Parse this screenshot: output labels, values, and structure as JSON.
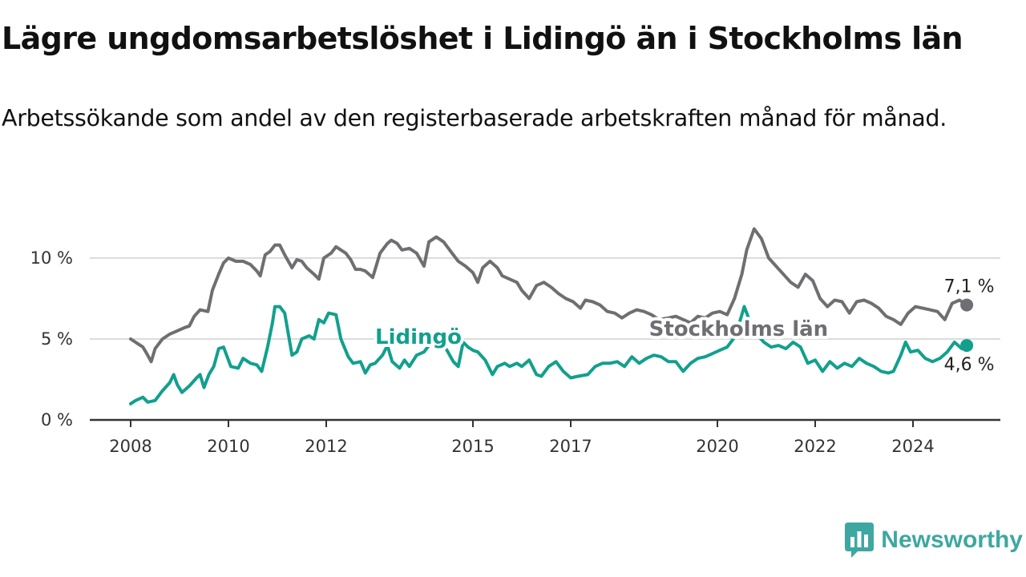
{
  "title": "Lägre ungdomsarbetslöshet i Lidingö än i Stockholms län",
  "subtitle": "Arbetssökande som andel av den registerbaserade arbetskraften månad för månad.",
  "brand": {
    "name": "Newsworthy",
    "logo_icon": "bar-chart-speech-bubble-icon",
    "color": "#3fa7a1"
  },
  "chart_data": {
    "type": "line",
    "grid": true,
    "ylim": [
      0,
      12.5
    ],
    "xlim": [
      2008.0,
      2025.2
    ],
    "x_ticks": [
      2008,
      2010,
      2012,
      2015,
      2017,
      2020,
      2022,
      2024
    ],
    "y_ticks": [
      0,
      5,
      10
    ],
    "y_tick_labels": [
      "0 %",
      "5 %",
      "10 %"
    ],
    "series": [
      {
        "name": "Stockholms län",
        "color": "#6e6e73",
        "end_label": "7,1 %",
        "points": [
          [
            2008.0,
            5.0
          ],
          [
            2008.15,
            4.7
          ],
          [
            2008.25,
            4.5
          ],
          [
            2008.33,
            4.1
          ],
          [
            2008.42,
            3.6
          ],
          [
            2008.5,
            4.4
          ],
          [
            2008.65,
            5.0
          ],
          [
            2008.8,
            5.3
          ],
          [
            2008.95,
            5.5
          ],
          [
            2009.1,
            5.7
          ],
          [
            2009.2,
            5.8
          ],
          [
            2009.3,
            6.4
          ],
          [
            2009.42,
            6.8
          ],
          [
            2009.58,
            6.7
          ],
          [
            2009.67,
            8.0
          ],
          [
            2009.8,
            9.0
          ],
          [
            2009.9,
            9.7
          ],
          [
            2010.0,
            10.0
          ],
          [
            2010.15,
            9.8
          ],
          [
            2010.3,
            9.8
          ],
          [
            2010.45,
            9.6
          ],
          [
            2010.58,
            9.2
          ],
          [
            2010.65,
            8.9
          ],
          [
            2010.75,
            10.2
          ],
          [
            2010.85,
            10.4
          ],
          [
            2010.95,
            10.8
          ],
          [
            2011.05,
            10.8
          ],
          [
            2011.15,
            10.2
          ],
          [
            2011.3,
            9.4
          ],
          [
            2011.4,
            9.9
          ],
          [
            2011.5,
            9.8
          ],
          [
            2011.6,
            9.4
          ],
          [
            2011.75,
            9.0
          ],
          [
            2011.85,
            8.7
          ],
          [
            2011.95,
            10.0
          ],
          [
            2012.1,
            10.3
          ],
          [
            2012.2,
            10.7
          ],
          [
            2012.3,
            10.5
          ],
          [
            2012.4,
            10.3
          ],
          [
            2012.5,
            9.9
          ],
          [
            2012.6,
            9.3
          ],
          [
            2012.7,
            9.3
          ],
          [
            2012.8,
            9.2
          ],
          [
            2012.95,
            8.8
          ],
          [
            2013.1,
            10.3
          ],
          [
            2013.25,
            10.9
          ],
          [
            2013.33,
            11.1
          ],
          [
            2013.45,
            10.9
          ],
          [
            2013.55,
            10.5
          ],
          [
            2013.7,
            10.6
          ],
          [
            2013.85,
            10.3
          ],
          [
            2014.0,
            9.5
          ],
          [
            2014.1,
            11.0
          ],
          [
            2014.25,
            11.3
          ],
          [
            2014.4,
            11.0
          ],
          [
            2014.55,
            10.4
          ],
          [
            2014.7,
            9.8
          ],
          [
            2014.85,
            9.5
          ],
          [
            2015.0,
            9.1
          ],
          [
            2015.1,
            8.5
          ],
          [
            2015.2,
            9.4
          ],
          [
            2015.35,
            9.8
          ],
          [
            2015.5,
            9.4
          ],
          [
            2015.6,
            8.9
          ],
          [
            2015.75,
            8.7
          ],
          [
            2015.9,
            8.5
          ],
          [
            2016.0,
            8.0
          ],
          [
            2016.15,
            7.5
          ],
          [
            2016.3,
            8.3
          ],
          [
            2016.45,
            8.5
          ],
          [
            2016.6,
            8.2
          ],
          [
            2016.75,
            7.8
          ],
          [
            2016.9,
            7.5
          ],
          [
            2017.05,
            7.3
          ],
          [
            2017.2,
            6.9
          ],
          [
            2017.3,
            7.4
          ],
          [
            2017.45,
            7.3
          ],
          [
            2017.6,
            7.1
          ],
          [
            2017.75,
            6.7
          ],
          [
            2017.9,
            6.6
          ],
          [
            2018.05,
            6.3
          ],
          [
            2018.2,
            6.6
          ],
          [
            2018.35,
            6.8
          ],
          [
            2018.5,
            6.7
          ],
          [
            2018.65,
            6.5
          ],
          [
            2018.8,
            6.2
          ],
          [
            2019.0,
            6.3
          ],
          [
            2019.15,
            6.4
          ],
          [
            2019.3,
            6.2
          ],
          [
            2019.45,
            6.0
          ],
          [
            2019.6,
            6.4
          ],
          [
            2019.75,
            6.3
          ],
          [
            2019.9,
            6.6
          ],
          [
            2020.05,
            6.7
          ],
          [
            2020.2,
            6.5
          ],
          [
            2020.35,
            7.5
          ],
          [
            2020.5,
            9.0
          ],
          [
            2020.6,
            10.5
          ],
          [
            2020.75,
            11.8
          ],
          [
            2020.9,
            11.2
          ],
          [
            2021.05,
            10.0
          ],
          [
            2021.2,
            9.5
          ],
          [
            2021.35,
            9.0
          ],
          [
            2021.5,
            8.5
          ],
          [
            2021.65,
            8.2
          ],
          [
            2021.8,
            9.0
          ],
          [
            2021.95,
            8.6
          ],
          [
            2022.1,
            7.5
          ],
          [
            2022.25,
            7.0
          ],
          [
            2022.4,
            7.4
          ],
          [
            2022.55,
            7.3
          ],
          [
            2022.7,
            6.6
          ],
          [
            2022.85,
            7.3
          ],
          [
            2023.0,
            7.4
          ],
          [
            2023.15,
            7.2
          ],
          [
            2023.3,
            6.9
          ],
          [
            2023.45,
            6.4
          ],
          [
            2023.6,
            6.2
          ],
          [
            2023.75,
            5.9
          ],
          [
            2023.9,
            6.6
          ],
          [
            2024.05,
            7.0
          ],
          [
            2024.2,
            6.9
          ],
          [
            2024.35,
            6.8
          ],
          [
            2024.5,
            6.7
          ],
          [
            2024.65,
            6.2
          ],
          [
            2024.8,
            7.2
          ],
          [
            2024.95,
            7.4
          ],
          [
            2025.1,
            7.1
          ]
        ]
      },
      {
        "name": "Lidingö",
        "color": "#12a08d",
        "end_label": "4,6 %",
        "points": [
          [
            2008.0,
            1.0
          ],
          [
            2008.1,
            1.2
          ],
          [
            2008.25,
            1.4
          ],
          [
            2008.35,
            1.1
          ],
          [
            2008.5,
            1.2
          ],
          [
            2008.65,
            1.8
          ],
          [
            2008.8,
            2.3
          ],
          [
            2008.88,
            2.8
          ],
          [
            2008.95,
            2.2
          ],
          [
            2009.05,
            1.7
          ],
          [
            2009.2,
            2.1
          ],
          [
            2009.35,
            2.6
          ],
          [
            2009.42,
            2.8
          ],
          [
            2009.5,
            2.0
          ],
          [
            2009.6,
            2.8
          ],
          [
            2009.7,
            3.3
          ],
          [
            2009.8,
            4.4
          ],
          [
            2009.9,
            4.5
          ],
          [
            2010.05,
            3.3
          ],
          [
            2010.2,
            3.2
          ],
          [
            2010.3,
            3.8
          ],
          [
            2010.45,
            3.5
          ],
          [
            2010.58,
            3.4
          ],
          [
            2010.68,
            3.0
          ],
          [
            2010.8,
            4.5
          ],
          [
            2010.9,
            6.0
          ],
          [
            2010.95,
            7.0
          ],
          [
            2011.05,
            7.0
          ],
          [
            2011.15,
            6.6
          ],
          [
            2011.3,
            4.0
          ],
          [
            2011.4,
            4.2
          ],
          [
            2011.5,
            5.0
          ],
          [
            2011.65,
            5.2
          ],
          [
            2011.75,
            5.0
          ],
          [
            2011.85,
            6.2
          ],
          [
            2011.95,
            6.0
          ],
          [
            2012.05,
            6.6
          ],
          [
            2012.2,
            6.5
          ],
          [
            2012.3,
            5.0
          ],
          [
            2012.45,
            3.9
          ],
          [
            2012.55,
            3.5
          ],
          [
            2012.7,
            3.6
          ],
          [
            2012.8,
            2.9
          ],
          [
            2012.9,
            3.4
          ],
          [
            2013.0,
            3.5
          ],
          [
            2013.15,
            4.0
          ],
          [
            2013.25,
            4.6
          ],
          [
            2013.35,
            3.6
          ],
          [
            2013.5,
            3.2
          ],
          [
            2013.6,
            3.7
          ],
          [
            2013.7,
            3.3
          ],
          [
            2013.85,
            4.0
          ],
          [
            2014.0,
            4.2
          ],
          [
            2014.15,
            4.8
          ],
          [
            2014.3,
            5.0
          ],
          [
            2014.45,
            4.4
          ],
          [
            2014.6,
            3.6
          ],
          [
            2014.7,
            3.3
          ],
          [
            2014.8,
            4.8
          ],
          [
            2014.9,
            4.5
          ],
          [
            2015.0,
            4.3
          ],
          [
            2015.1,
            4.2
          ],
          [
            2015.25,
            3.7
          ],
          [
            2015.4,
            2.8
          ],
          [
            2015.5,
            3.3
          ],
          [
            2015.65,
            3.5
          ],
          [
            2015.75,
            3.3
          ],
          [
            2015.9,
            3.5
          ],
          [
            2016.0,
            3.3
          ],
          [
            2016.15,
            3.7
          ],
          [
            2016.3,
            2.8
          ],
          [
            2016.4,
            2.7
          ],
          [
            2016.55,
            3.3
          ],
          [
            2016.7,
            3.6
          ],
          [
            2016.85,
            3.0
          ],
          [
            2017.0,
            2.6
          ],
          [
            2017.15,
            2.7
          ],
          [
            2017.35,
            2.8
          ],
          [
            2017.5,
            3.3
          ],
          [
            2017.65,
            3.5
          ],
          [
            2017.8,
            3.5
          ],
          [
            2017.95,
            3.6
          ],
          [
            2018.1,
            3.3
          ],
          [
            2018.25,
            3.9
          ],
          [
            2018.4,
            3.5
          ],
          [
            2018.55,
            3.8
          ],
          [
            2018.7,
            4.0
          ],
          [
            2018.85,
            3.9
          ],
          [
            2019.0,
            3.6
          ],
          [
            2019.15,
            3.6
          ],
          [
            2019.3,
            3.0
          ],
          [
            2019.45,
            3.5
          ],
          [
            2019.6,
            3.8
          ],
          [
            2019.75,
            3.9
          ],
          [
            2019.9,
            4.1
          ],
          [
            2020.05,
            4.3
          ],
          [
            2020.2,
            4.5
          ],
          [
            2020.35,
            5.1
          ],
          [
            2020.45,
            6.0
          ],
          [
            2020.55,
            7.0
          ],
          [
            2020.65,
            6.2
          ],
          [
            2020.8,
            5.3
          ],
          [
            2020.95,
            4.8
          ],
          [
            2021.1,
            4.5
          ],
          [
            2021.25,
            4.6
          ],
          [
            2021.4,
            4.4
          ],
          [
            2021.55,
            4.8
          ],
          [
            2021.7,
            4.5
          ],
          [
            2021.85,
            3.5
          ],
          [
            2022.0,
            3.7
          ],
          [
            2022.15,
            3.0
          ],
          [
            2022.3,
            3.6
          ],
          [
            2022.45,
            3.2
          ],
          [
            2022.6,
            3.5
          ],
          [
            2022.75,
            3.3
          ],
          [
            2022.9,
            3.8
          ],
          [
            2023.05,
            3.5
          ],
          [
            2023.2,
            3.3
          ],
          [
            2023.35,
            3.0
          ],
          [
            2023.5,
            2.9
          ],
          [
            2023.6,
            3.0
          ],
          [
            2023.75,
            4.0
          ],
          [
            2023.85,
            4.8
          ],
          [
            2023.95,
            4.2
          ],
          [
            2024.1,
            4.3
          ],
          [
            2024.25,
            3.8
          ],
          [
            2024.4,
            3.6
          ],
          [
            2024.55,
            3.8
          ],
          [
            2024.7,
            4.2
          ],
          [
            2024.85,
            4.8
          ],
          [
            2025.0,
            4.4
          ],
          [
            2025.1,
            4.6
          ]
        ]
      }
    ]
  }
}
